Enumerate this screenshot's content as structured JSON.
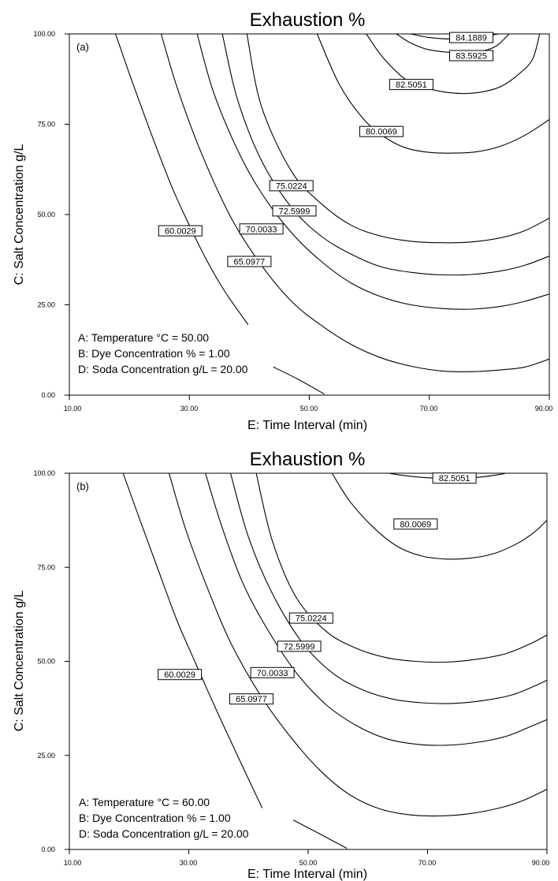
{
  "chart_data": [
    {
      "type": "contour",
      "panel": "(a)",
      "title": "Exhaustion %",
      "xlabel": "E: Time Interval (min)",
      "ylabel": "C: Salt Concentration g/L",
      "xlim": [
        10,
        90
      ],
      "ylim": [
        0,
        100
      ],
      "x_ticks": [
        "10.00",
        "30.00",
        "50.00",
        "70.00",
        "90.00"
      ],
      "y_ticks": [
        "0.00",
        "25.00",
        "50.00",
        "75.00",
        "100.00"
      ],
      "legend": [
        "A: Temperature °C = 50.00",
        "B: Dye Concentration % = 1.00",
        "D: Soda Concentration g/L = 20.00"
      ],
      "contour_labels": [
        "84.1889",
        "83.5925",
        "82.5051",
        "80.0069",
        "75.0224",
        "72.5999",
        "70.0033",
        "65.0977",
        "60.0029"
      ],
      "contours": [
        {
          "level": 84.1889,
          "label_at": [
            77,
            99
          ],
          "points": [
            [
              66.9,
              100
            ],
            [
              70,
              99
            ],
            [
              73.5,
              98.6
            ],
            [
              77,
              99
            ],
            [
              80,
              99.6
            ],
            [
              81.6,
              100
            ]
          ]
        },
        {
          "level": 83.5925,
          "label_at": [
            77,
            94
          ],
          "points": [
            [
              64.5,
              100
            ],
            [
              67,
              97.4
            ],
            [
              70,
              95.6
            ],
            [
              74.5,
              94.8
            ],
            [
              78,
              95
            ],
            [
              81,
              96.5
            ],
            [
              83.3,
              100
            ]
          ]
        },
        {
          "level": 82.5051,
          "label_at": [
            67,
            86
          ],
          "points": [
            [
              59.5,
              100
            ],
            [
              62,
              94
            ],
            [
              65,
              88.8
            ],
            [
              67,
              86.5
            ],
            [
              69.5,
              85
            ],
            [
              73,
              83.8
            ],
            [
              76,
              83.5
            ],
            [
              79,
              84
            ],
            [
              82,
              85.5
            ],
            [
              85,
              89
            ],
            [
              87.2,
              93
            ],
            [
              88.4,
              100
            ]
          ]
        },
        {
          "level": 80.0069,
          "label_at": [
            62,
            73
          ],
          "points": [
            [
              51.3,
              100
            ],
            [
              55,
              86
            ],
            [
              59,
              76.5
            ],
            [
              62.5,
              71.5
            ],
            [
              66,
              68.5
            ],
            [
              70,
              67.2
            ],
            [
              74,
              67
            ],
            [
              78,
              67.4
            ],
            [
              82,
              69
            ],
            [
              86,
              72
            ],
            [
              90,
              76.3
            ]
          ]
        },
        {
          "level": 75.0224,
          "label_at": [
            47,
            58
          ],
          "points": [
            [
              39.6,
              100
            ],
            [
              42,
              80
            ],
            [
              47,
              62
            ],
            [
              52,
              53
            ],
            [
              57,
              47
            ],
            [
              62,
              44
            ],
            [
              67,
              42.6
            ],
            [
              72,
              42.2
            ],
            [
              77,
              42.4
            ],
            [
              82,
              43.6
            ],
            [
              86,
              45.6
            ],
            [
              90,
              49
            ]
          ]
        },
        {
          "level": 72.5999,
          "label_at": [
            47.5,
            51
          ],
          "points": [
            [
              35.5,
              100
            ],
            [
              38,
              82
            ],
            [
              42,
              65
            ],
            [
              47,
              52
            ],
            [
              52,
              44
            ],
            [
              57,
              39
            ],
            [
              62,
              35.5
            ],
            [
              67,
              34
            ],
            [
              72,
              33.3
            ],
            [
              77,
              33.4
            ],
            [
              82,
              34.4
            ],
            [
              86,
              36
            ],
            [
              90,
              38.5
            ]
          ]
        },
        {
          "level": 70.0033,
          "label_at": [
            42,
            46
          ],
          "points": [
            [
              31.3,
              100
            ],
            [
              34,
              84
            ],
            [
              38,
              68
            ],
            [
              42,
              56
            ],
            [
              47,
              45
            ],
            [
              52,
              37
            ],
            [
              57,
              31
            ],
            [
              62,
              27.2
            ],
            [
              67,
              25
            ],
            [
              72,
              24
            ],
            [
              77,
              23.8
            ],
            [
              82,
              24.6
            ],
            [
              86,
              26
            ],
            [
              90,
              28
            ]
          ]
        },
        {
          "level": 65.0977,
          "label_at": [
            40,
            37
          ],
          "points": [
            [
              25.3,
              100
            ],
            [
              28,
              85
            ],
            [
              32,
              67
            ],
            [
              37,
              49
            ],
            [
              42,
              36
            ],
            [
              47,
              26
            ],
            [
              52,
              19.3
            ],
            [
              57,
              14
            ],
            [
              62,
              10.3
            ],
            [
              67,
              8
            ],
            [
              72,
              6.7
            ],
            [
              77,
              6.5
            ],
            [
              82,
              7
            ],
            [
              86,
              7.8
            ],
            [
              90,
              10
            ]
          ]
        },
        {
          "level": 60.0029,
          "label_at": [
            28.5,
            45.5
          ],
          "points": [
            [
              17.7,
              100
            ],
            [
              20,
              89
            ],
            [
              23.5,
              73
            ],
            [
              27,
              58
            ],
            [
              30,
              47
            ],
            [
              33,
              37
            ],
            [
              36,
              28.5
            ],
            [
              39.8,
              19.5
            ]
          ]
        },
        {
          "level": 60.0029,
          "label_at": null,
          "points": [
            [
              44,
              7.8
            ],
            [
              48,
              4.5
            ],
            [
              52.5,
              0.3
            ]
          ]
        }
      ]
    },
    {
      "type": "contour",
      "panel": "(b)",
      "title": "Exhaustion %",
      "xlabel": "E: Time Interval (min)",
      "ylabel": "C: Salt Concentration g/L",
      "xlim": [
        10,
        90
      ],
      "ylim": [
        0,
        100
      ],
      "x_ticks": [
        "10.00",
        "30.00",
        "50.00",
        "70.00",
        "90.00"
      ],
      "y_ticks": [
        "0.00",
        "25.00",
        "50.00",
        "75.00",
        "100.00"
      ],
      "legend": [
        "A: Temperature °C = 60.00",
        "B: Dye Concentration % = 1.00",
        "D: Soda Concentration g/L = 20.00"
      ],
      "contour_labels": [
        "82.5051",
        "80.0069",
        "75.0224",
        "72.5999",
        "70.0033",
        "65.0977",
        "60.0029"
      ],
      "contours": [
        {
          "level": 82.5051,
          "label_at": [
            74.5,
            98.7
          ],
          "points": [
            [
              63.5,
              100
            ],
            [
              66,
              99.4
            ],
            [
              70,
              98.8
            ],
            [
              74.5,
              98.7
            ],
            [
              79,
              99
            ],
            [
              82.5,
              99.8
            ],
            [
              83,
              100
            ]
          ]
        },
        {
          "level": 80.0069,
          "label_at": [
            68,
            86.5
          ],
          "points": [
            [
              54,
              100
            ],
            [
              57,
              92.5
            ],
            [
              61,
              85.5
            ],
            [
              65,
              80.5
            ],
            [
              69,
              78
            ],
            [
              73,
              77.2
            ],
            [
              77,
              77.4
            ],
            [
              81,
              78.6
            ],
            [
              85,
              81.3
            ],
            [
              88,
              84.5
            ],
            [
              90,
              87.5
            ]
          ]
        },
        {
          "level": 75.0224,
          "label_at": [
            50.5,
            61.5
          ],
          "points": [
            [
              41.3,
              100
            ],
            [
              44,
              82
            ],
            [
              48,
              67
            ],
            [
              53,
              58
            ],
            [
              58,
              53.5
            ],
            [
              63,
              51
            ],
            [
              68,
              50
            ],
            [
              73,
              49.8
            ],
            [
              78,
              50.5
            ],
            [
              83,
              52
            ],
            [
              87,
              54.5
            ],
            [
              90,
              57
            ]
          ]
        },
        {
          "level": 72.5999,
          "label_at": [
            48.5,
            54
          ],
          "points": [
            [
              37,
              100
            ],
            [
              40,
              83
            ],
            [
              44,
              68
            ],
            [
              49,
              55
            ],
            [
              54,
              47
            ],
            [
              59,
              42.5
            ],
            [
              64,
              40
            ],
            [
              69,
              39
            ],
            [
              74,
              38.8
            ],
            [
              79,
              39.5
            ],
            [
              84,
              41
            ],
            [
              88,
              43.5
            ],
            [
              90,
              45
            ]
          ]
        },
        {
          "level": 70.0033,
          "label_at": [
            44,
            47
          ],
          "points": [
            [
              32.8,
              100
            ],
            [
              35.5,
              86
            ],
            [
              39,
              71
            ],
            [
              43,
              59
            ],
            [
              48,
              47
            ],
            [
              53,
              38.5
            ],
            [
              58,
              33
            ],
            [
              63,
              29.5
            ],
            [
              68,
              28
            ],
            [
              73,
              27.7
            ],
            [
              78,
              28.4
            ],
            [
              83,
              30
            ],
            [
              87,
              32.5
            ],
            [
              90,
              34.5
            ]
          ]
        },
        {
          "level": 65.0977,
          "label_at": [
            40.5,
            40
          ],
          "points": [
            [
              26.7,
              100
            ],
            [
              29.5,
              85
            ],
            [
              33,
              70
            ],
            [
              37,
              55
            ],
            [
              42,
              41
            ],
            [
              47,
              30
            ],
            [
              52,
              21
            ],
            [
              57,
              14.5
            ],
            [
              62,
              10.8
            ],
            [
              67,
              9.2
            ],
            [
              72,
              8.9
            ],
            [
              77,
              9.5
            ],
            [
              82,
              11
            ],
            [
              86,
              13
            ],
            [
              90,
              16
            ]
          ]
        },
        {
          "level": 60.0029,
          "label_at": [
            28.5,
            46.5
          ],
          "points": [
            [
              19,
              100
            ],
            [
              21.5,
              89
            ],
            [
              24.5,
              76
            ],
            [
              28,
              61
            ],
            [
              31,
              50
            ],
            [
              34.5,
              37.5
            ],
            [
              38,
              25.5
            ],
            [
              42.3,
              11
            ]
          ]
        },
        {
          "level": 60.0029,
          "label_at": null,
          "points": [
            [
              47.5,
              7.8
            ],
            [
              51.5,
              4.5
            ],
            [
              56.5,
              0.3
            ]
          ]
        }
      ]
    }
  ]
}
